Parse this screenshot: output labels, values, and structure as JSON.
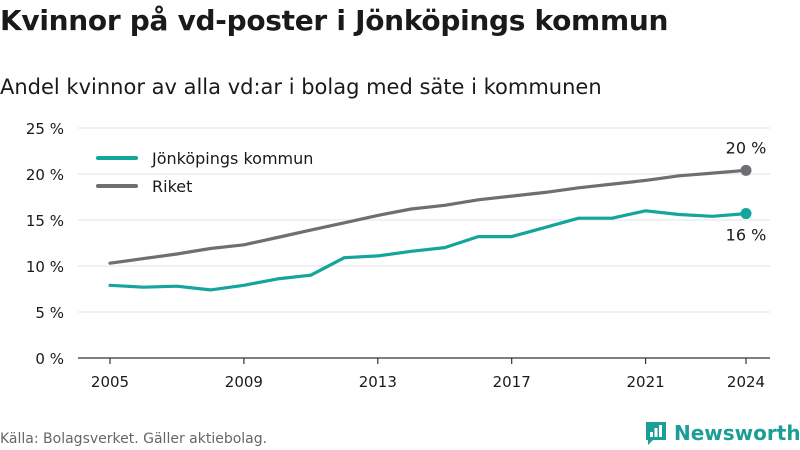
{
  "header": {
    "title": "Kvinnor på vd-poster i Jönköpings kommun",
    "subtitle": "Andel kvinnor av alla vd:ar i bolag med säte i kommunen"
  },
  "footer": {
    "source": "Källa: Bolagsverket. Gäller aktiebolag.",
    "brand": "Newsworthy",
    "brand_icon": "newsworthy-logo-icon"
  },
  "colors": {
    "jonkoping": "#14a59b",
    "riket": "#6e6e73",
    "axis": "#333333",
    "grid": "#e3e3e3",
    "brand": "#1a9e96"
  },
  "chart_data": {
    "type": "line",
    "x": [
      2005,
      2006,
      2007,
      2008,
      2009,
      2010,
      2011,
      2012,
      2013,
      2014,
      2015,
      2016,
      2017,
      2018,
      2019,
      2020,
      2021,
      2022,
      2023,
      2024
    ],
    "series": [
      {
        "name": "Jönköpings kommun",
        "values": [
          7.9,
          7.7,
          7.8,
          7.4,
          7.9,
          8.6,
          9.0,
          10.9,
          11.1,
          11.6,
          12.0,
          13.2,
          13.2,
          14.2,
          15.2,
          15.2,
          16.0,
          15.6,
          15.4,
          15.7
        ],
        "end_label": "16 %"
      },
      {
        "name": "Riket",
        "values": [
          10.3,
          10.8,
          11.3,
          11.9,
          12.3,
          13.1,
          13.9,
          14.7,
          15.5,
          16.2,
          16.6,
          17.2,
          17.6,
          18.0,
          18.5,
          18.9,
          19.3,
          19.8,
          20.1,
          20.4
        ],
        "end_label": "20 %"
      }
    ],
    "x_ticks": [
      2005,
      2009,
      2013,
      2017,
      2021,
      2024
    ],
    "y_ticks": [
      0,
      5,
      10,
      15,
      20,
      25
    ],
    "y_tick_labels": [
      "0 %",
      "5 %",
      "10 %",
      "15 %",
      "20 %",
      "25 %"
    ],
    "xlim": [
      2005,
      2024
    ],
    "ylim": [
      0,
      25
    ],
    "grid": "horizontal",
    "legend_position": "top-left"
  }
}
